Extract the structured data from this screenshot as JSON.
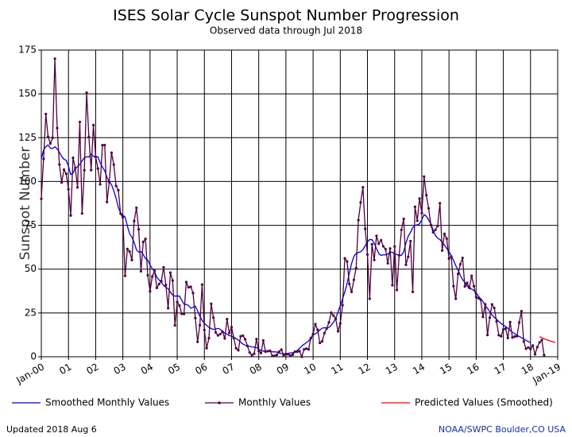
{
  "chart_data": {
    "type": "line",
    "title": "ISES Solar Cycle Sunspot Number Progression",
    "subtitle": "Observed data through Jul 2018",
    "ylabel": "Sunspot Number",
    "updated": "Updated 2018 Aug  6",
    "source": "NOAA/SWPC Boulder,CO USA",
    "grid": true,
    "xlim": [
      "2000-01",
      "2019-01"
    ],
    "xticks": [
      {
        "value": "2000-01",
        "label": "Jan-00"
      },
      {
        "value": "2001-01",
        "label": "01"
      },
      {
        "value": "2002-01",
        "label": "02"
      },
      {
        "value": "2003-01",
        "label": "03"
      },
      {
        "value": "2004-01",
        "label": "04"
      },
      {
        "value": "2005-01",
        "label": "05"
      },
      {
        "value": "2006-01",
        "label": "06"
      },
      {
        "value": "2007-01",
        "label": "07"
      },
      {
        "value": "2008-01",
        "label": "08"
      },
      {
        "value": "2009-01",
        "label": "09"
      },
      {
        "value": "2010-01",
        "label": "10"
      },
      {
        "value": "2011-01",
        "label": "11"
      },
      {
        "value": "2012-01",
        "label": "12"
      },
      {
        "value": "2013-01",
        "label": "13"
      },
      {
        "value": "2014-01",
        "label": "14"
      },
      {
        "value": "2015-01",
        "label": "15"
      },
      {
        "value": "2016-01",
        "label": "16"
      },
      {
        "value": "2017-01",
        "label": "17"
      },
      {
        "value": "2018-01",
        "label": "18"
      },
      {
        "value": "2019-01",
        "label": "Jan-19"
      }
    ],
    "ylim": [
      0,
      175
    ],
    "yticks": [
      0,
      25,
      50,
      75,
      100,
      125,
      150,
      175
    ],
    "x": [
      "2000-01",
      "2000-02",
      "2000-03",
      "2000-04",
      "2000-05",
      "2000-06",
      "2000-07",
      "2000-08",
      "2000-09",
      "2000-10",
      "2000-11",
      "2000-12",
      "2001-01",
      "2001-02",
      "2001-03",
      "2001-04",
      "2001-05",
      "2001-06",
      "2001-07",
      "2001-08",
      "2001-09",
      "2001-10",
      "2001-11",
      "2001-12",
      "2002-01",
      "2002-02",
      "2002-03",
      "2002-04",
      "2002-05",
      "2002-06",
      "2002-07",
      "2002-08",
      "2002-09",
      "2002-10",
      "2002-11",
      "2002-12",
      "2003-01",
      "2003-02",
      "2003-03",
      "2003-04",
      "2003-05",
      "2003-06",
      "2003-07",
      "2003-08",
      "2003-09",
      "2003-10",
      "2003-11",
      "2003-12",
      "2004-01",
      "2004-02",
      "2004-03",
      "2004-04",
      "2004-05",
      "2004-06",
      "2004-07",
      "2004-08",
      "2004-09",
      "2004-10",
      "2004-11",
      "2004-12",
      "2005-01",
      "2005-02",
      "2005-03",
      "2005-04",
      "2005-05",
      "2005-06",
      "2005-07",
      "2005-08",
      "2005-09",
      "2005-10",
      "2005-11",
      "2005-12",
      "2006-01",
      "2006-02",
      "2006-03",
      "2006-04",
      "2006-05",
      "2006-06",
      "2006-07",
      "2006-08",
      "2006-09",
      "2006-10",
      "2006-11",
      "2006-12",
      "2007-01",
      "2007-02",
      "2007-03",
      "2007-04",
      "2007-05",
      "2007-06",
      "2007-07",
      "2007-08",
      "2007-09",
      "2007-10",
      "2007-11",
      "2007-12",
      "2008-01",
      "2008-02",
      "2008-03",
      "2008-04",
      "2008-05",
      "2008-06",
      "2008-07",
      "2008-08",
      "2008-09",
      "2008-10",
      "2008-11",
      "2008-12",
      "2009-01",
      "2009-02",
      "2009-03",
      "2009-04",
      "2009-05",
      "2009-06",
      "2009-07",
      "2009-08",
      "2009-09",
      "2009-10",
      "2009-11",
      "2009-12",
      "2010-01",
      "2010-02",
      "2010-03",
      "2010-04",
      "2010-05",
      "2010-06",
      "2010-07",
      "2010-08",
      "2010-09",
      "2010-10",
      "2010-11",
      "2010-12",
      "2011-01",
      "2011-02",
      "2011-03",
      "2011-04",
      "2011-05",
      "2011-06",
      "2011-07",
      "2011-08",
      "2011-09",
      "2011-10",
      "2011-11",
      "2011-12",
      "2012-01",
      "2012-02",
      "2012-03",
      "2012-04",
      "2012-05",
      "2012-06",
      "2012-07",
      "2012-08",
      "2012-09",
      "2012-10",
      "2012-11",
      "2012-12",
      "2013-01",
      "2013-02",
      "2013-03",
      "2013-04",
      "2013-05",
      "2013-06",
      "2013-07",
      "2013-08",
      "2013-09",
      "2013-10",
      "2013-11",
      "2013-12",
      "2014-01",
      "2014-02",
      "2014-03",
      "2014-04",
      "2014-05",
      "2014-06",
      "2014-07",
      "2014-08",
      "2014-09",
      "2014-10",
      "2014-11",
      "2014-12",
      "2015-01",
      "2015-02",
      "2015-03",
      "2015-04",
      "2015-05",
      "2015-06",
      "2015-07",
      "2015-08",
      "2015-09",
      "2015-10",
      "2015-11",
      "2015-12",
      "2016-01",
      "2016-02",
      "2016-03",
      "2016-04",
      "2016-05",
      "2016-06",
      "2016-07",
      "2016-08",
      "2016-09",
      "2016-10",
      "2016-11",
      "2016-12",
      "2017-01",
      "2017-02",
      "2017-03",
      "2017-04",
      "2017-05",
      "2017-06",
      "2017-07",
      "2017-08",
      "2017-09",
      "2017-10",
      "2017-11",
      "2017-12",
      "2018-01",
      "2018-02",
      "2018-03",
      "2018-04",
      "2018-05",
      "2018-06",
      "2018-07"
    ],
    "series": [
      {
        "name": "Smoothed Monthly Values",
        "color": "#0000e0",
        "style": "line",
        "values": [
          112.9,
          117.9,
          119.9,
          120.8,
          119.0,
          118.8,
          119.8,
          118.6,
          116.6,
          114.3,
          112.7,
          112.1,
          108.7,
          104.0,
          104.8,
          107.5,
          108.6,
          109.8,
          111.7,
          113.6,
          114.1,
          114.0,
          115.6,
          114.5,
          113.6,
          114.1,
          110.7,
          108.2,
          106.1,
          102.4,
          99.7,
          98.2,
          94.6,
          90.5,
          85.2,
          82.0,
          80.8,
          79.7,
          74.6,
          70.2,
          68.1,
          65.3,
          61.0,
          59.7,
          60.0,
          58.3,
          56.0,
          55.2,
          52.4,
          50.3,
          48.6,
          45.4,
          43.8,
          42.6,
          40.7,
          39.6,
          38.8,
          36.8,
          35.2,
          34.6,
          34.7,
          34.6,
          32.2,
          30.0,
          29.8,
          29.3,
          27.7,
          28.2,
          28.9,
          26.2,
          23.1,
          20.8,
          19.0,
          17.9,
          16.8,
          16.1,
          15.6,
          15.8,
          16.2,
          15.6,
          14.3,
          13.5,
          12.9,
          12.0,
          11.8,
          11.1,
          10.4,
          9.5,
          8.3,
          7.3,
          6.6,
          6.1,
          5.9,
          5.6,
          5.5,
          5.3,
          4.2,
          3.6,
          3.2,
          3.4,
          3.3,
          3.0,
          2.8,
          2.8,
          2.7,
          2.2,
          1.7,
          1.7,
          1.8,
          1.9,
          2.2,
          2.3,
          2.7,
          3.6,
          4.8,
          6.2,
          7.1,
          8.0,
          9.0,
          10.6,
          12.3,
          13.1,
          14.0,
          15.3,
          16.3,
          16.6,
          16.4,
          16.8,
          18.0,
          19.6,
          22.0,
          25.4,
          29.2,
          33.0,
          36.9,
          41.8,
          47.6,
          53.2,
          57.2,
          59.0,
          59.5,
          59.9,
          61.1,
          63.4,
          65.5,
          66.9,
          66.8,
          64.6,
          61.7,
          58.9,
          57.8,
          58.2,
          58.1,
          58.6,
          59.7,
          59.6,
          58.7,
          58.4,
          57.6,
          57.9,
          59.9,
          64.9,
          68.8,
          71.0,
          73.7,
          75.0,
          75.3,
          75.9,
          78.2,
          81.1,
          80.2,
          78.1,
          75.7,
          72.3,
          69.2,
          67.6,
          66.9,
          65.3,
          63.7,
          61.8,
          59.9,
          57.7,
          55.0,
          52.0,
          49.4,
          46.4,
          44.0,
          42.4,
          40.4,
          39.1,
          38.6,
          37.8,
          36.5,
          34.5,
          33.0,
          31.5,
          29.3,
          27.6,
          25.7,
          23.8,
          22.5,
          21.4,
          20.1,
          19.0,
          18.1,
          17.2,
          16.2,
          15.1,
          14.0,
          13.2,
          12.4,
          11.6,
          10.9,
          10.1,
          9.4,
          8.7,
          8.0,
          null,
          null,
          null,
          null,
          null,
          null
        ]
      },
      {
        "name": "Monthly Values",
        "color": "#500040",
        "style": "dots",
        "values": [
          90.1,
          112.9,
          138.5,
          125.5,
          121.6,
          124.9,
          170.1,
          130.5,
          109.7,
          99.4,
          106.8,
          104.4,
          95.6,
          80.6,
          113.5,
          107.7,
          96.6,
          134.0,
          81.8,
          106.4,
          150.7,
          125.5,
          106.5,
          132.2,
          114.1,
          107.4,
          98.4,
          120.7,
          120.8,
          88.3,
          99.6,
          116.4,
          109.6,
          97.5,
          95.0,
          81.6,
          79.5,
          46.2,
          61.5,
          60.0,
          55.2,
          77.4,
          85.0,
          72.7,
          48.8,
          65.5,
          67.3,
          46.5,
          37.3,
          45.8,
          49.1,
          39.3,
          41.5,
          43.2,
          51.1,
          40.9,
          27.7,
          48.0,
          43.5,
          17.9,
          31.3,
          29.2,
          24.5,
          24.4,
          42.6,
          39.6,
          39.9,
          36.4,
          22.1,
          8.5,
          18.0,
          41.2,
          15.3,
          4.9,
          10.6,
          30.2,
          22.3,
          13.9,
          12.2,
          12.9,
          14.4,
          10.4,
          21.5,
          13.6,
          16.9,
          10.6,
          4.8,
          3.7,
          11.7,
          12.0,
          10.0,
          6.2,
          2.4,
          0.9,
          1.7,
          10.1,
          3.3,
          2.1,
          9.3,
          2.9,
          3.2,
          3.4,
          0.5,
          0.5,
          1.1,
          2.9,
          4.1,
          0.8,
          1.5,
          1.4,
          0.7,
          1.2,
          2.9,
          2.9,
          3.2,
          0.0,
          4.2,
          4.6,
          4.2,
          10.6,
          13.1,
          18.6,
          15.4,
          7.9,
          8.8,
          13.5,
          16.1,
          19.6,
          25.2,
          23.5,
          21.6,
          14.5,
          19.0,
          29.4,
          56.2,
          54.4,
          41.6,
          37.0,
          43.9,
          50.6,
          78.0,
          88.0,
          96.7,
          73.0,
          58.3,
          33.1,
          64.2,
          55.2,
          69.0,
          64.5,
          66.5,
          63.0,
          61.4,
          53.3,
          61.8,
          40.8,
          62.9,
          38.1,
          57.9,
          72.4,
          78.7,
          52.5,
          57.0,
          66.0,
          37.0,
          85.6,
          77.6,
          90.3,
          82.0,
          102.8,
          92.2,
          84.7,
          75.2,
          71.0,
          72.4,
          74.6,
          87.6,
          60.6,
          70.1,
          67.4,
          56.0,
          57.2,
          40.3,
          33.1,
          47.3,
          52.8,
          56.4,
          40.1,
          42.2,
          39.3,
          46.2,
          40.3,
          34.0,
          33.4,
          32.6,
          22.7,
          30.0,
          12.4,
          22.3,
          29.9,
          27.8,
          20.1,
          12.3,
          11.7,
          15.6,
          16.1,
          10.7,
          19.8,
          11.0,
          11.5,
          11.7,
          19.5,
          26.0,
          8.7,
          4.6,
          5.3,
          4.4,
          6.4,
          1.4,
          5.5,
          8.2,
          9.6,
          0.9
        ]
      },
      {
        "name": "Predicted Values (Smoothed)",
        "color": "#ff0000",
        "style": "line",
        "x": [
          "2018-05",
          "2018-06",
          "2018-07",
          "2018-08",
          "2018-09",
          "2018-10",
          "2018-11",
          "2018-12"
        ],
        "values": [
          11.5,
          10.9,
          10.3,
          9.8,
          9.3,
          8.9,
          8.5,
          8.1
        ]
      }
    ]
  }
}
